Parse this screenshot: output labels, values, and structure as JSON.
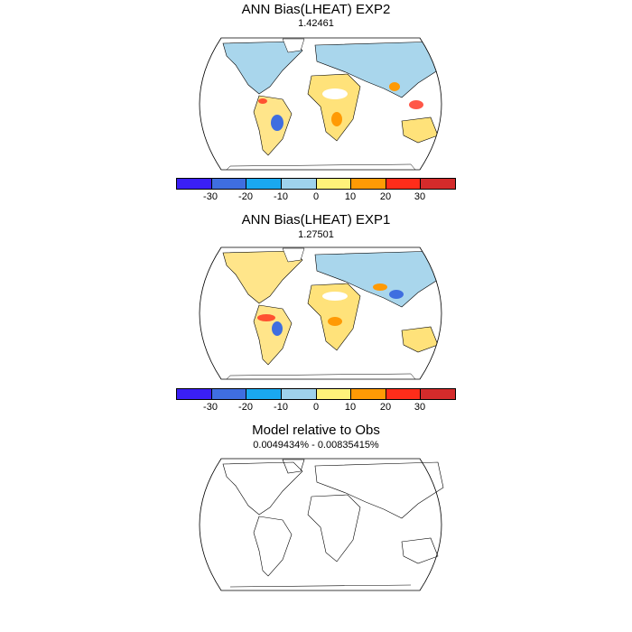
{
  "panels": [
    {
      "title": "ANN Bias(LHEAT) EXP2",
      "subtitle": "1.42461"
    },
    {
      "title": "ANN Bias(LHEAT) EXP1",
      "subtitle": "1.27501"
    },
    {
      "title": "Model relative to Obs",
      "subtitle": "0.0049434% - 0.00835415%"
    }
  ],
  "colorbar": {
    "colors": [
      "#3a1ff5",
      "#3f6ee0",
      "#1aa8f0",
      "#9fd2ec",
      "#fff27a",
      "#ffe44d",
      "#ff9a05",
      "#ff2d1a",
      "#d42b2b"
    ],
    "tick_labels": [
      "-30",
      "-20",
      "-10",
      "0",
      "10",
      "20",
      "30"
    ]
  }
}
